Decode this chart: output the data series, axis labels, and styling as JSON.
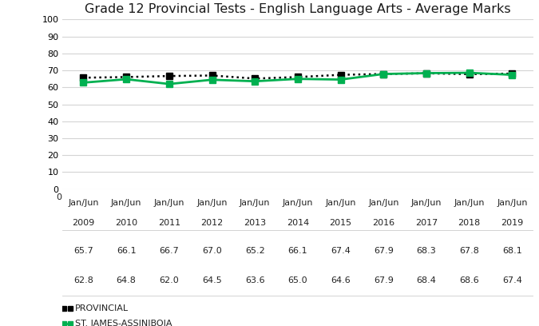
{
  "title": "Grade 12 Provincial Tests - English Language Arts - Average Marks",
  "x_labels": [
    "Jan/Jun\n2009",
    "Jan/Jun\n2010",
    "Jan/Jun\n2011",
    "Jan/Jun\n2012",
    "Jan/Jun\n2013",
    "Jan/Jun\n2014",
    "Jan/Jun\n2015",
    "Jan/Jun\n2016",
    "Jan/Jun\n2017",
    "Jan/Jun\n2018",
    "Jan/Jun\n2019"
  ],
  "provincial": [
    65.7,
    66.1,
    66.7,
    67.0,
    65.2,
    66.1,
    67.4,
    67.9,
    68.3,
    67.8,
    68.1
  ],
  "st_james": [
    62.8,
    64.8,
    62.0,
    64.5,
    63.6,
    65.0,
    64.6,
    67.9,
    68.4,
    68.6,
    67.4
  ],
  "provincial_label": "■•PROVINCIAL",
  "st_james_label": "■•ST. JAMES-ASSINIBOIA",
  "provincial_color": "#000000",
  "st_james_color": "#00b050",
  "ylim": [
    0,
    100
  ],
  "yticks": [
    0,
    10,
    20,
    30,
    40,
    50,
    60,
    70,
    80,
    90,
    100
  ],
  "background_color": "#ffffff",
  "grid_color": "#d4d4d4",
  "title_fontsize": 11.5,
  "legend_fontsize": 8,
  "tick_fontsize": 8,
  "table_fontsize": 8,
  "table_provincial": [
    "65.7",
    "66.1",
    "66.7",
    "67.0",
    "65.2",
    "66.1",
    "67.4",
    "67.9",
    "68.3",
    "67.8",
    "68.1"
  ],
  "table_st_james": [
    "62.8",
    "64.8",
    "62.0",
    "64.5",
    "63.6",
    "65.0",
    "64.6",
    "67.9",
    "68.4",
    "68.6",
    "67.4"
  ]
}
